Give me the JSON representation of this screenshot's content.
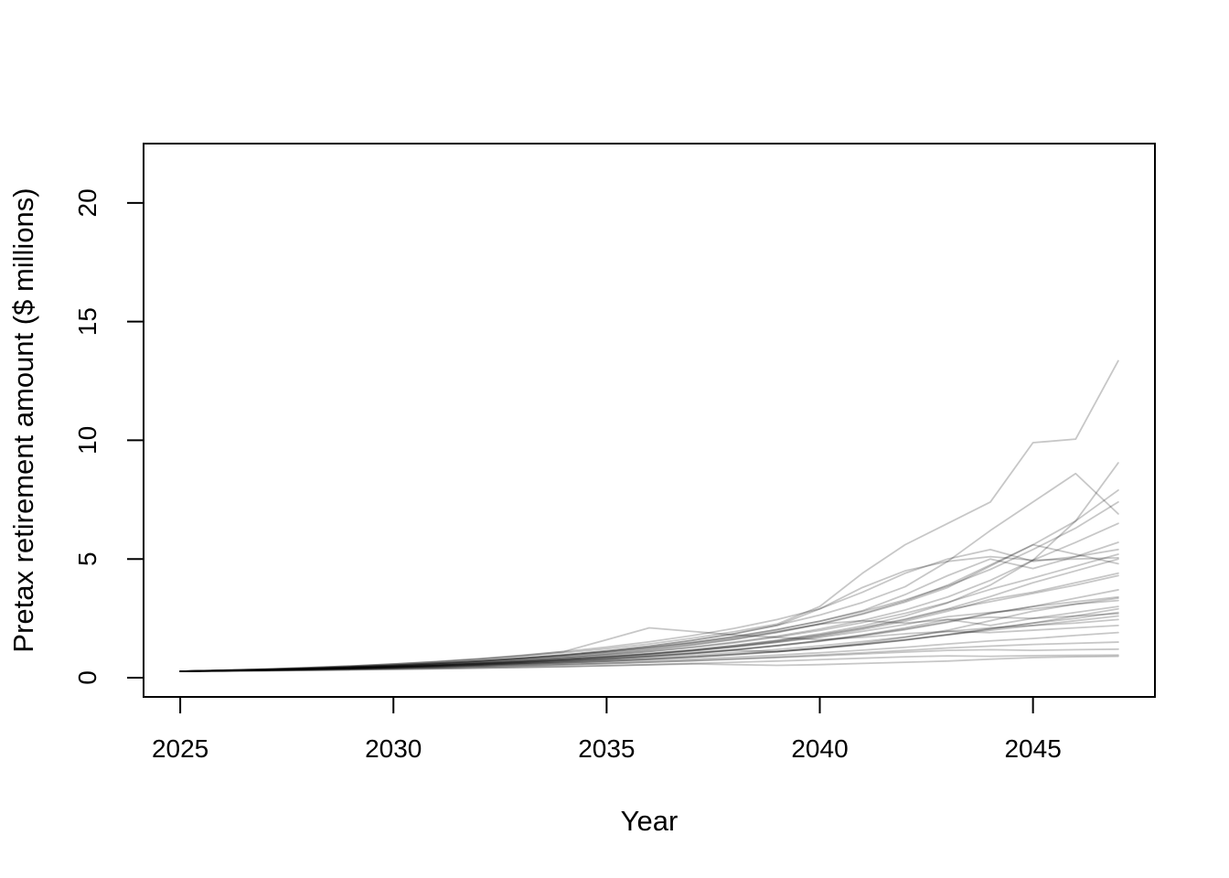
{
  "figure_title": "",
  "chart_data": {
    "type": "line",
    "title": "",
    "xlabel": "Year",
    "ylabel": "Pretax retirement amount ($ millions)",
    "x": [
      2025,
      2026,
      2027,
      2028,
      2029,
      2030,
      2031,
      2032,
      2033,
      2034,
      2035,
      2036,
      2037,
      2038,
      2039,
      2040,
      2041,
      2042,
      2043,
      2044,
      2045,
      2046,
      2047
    ],
    "x_ticks": [
      2025,
      2030,
      2035,
      2040,
      2045
    ],
    "y_ticks": [
      0,
      5,
      10,
      15,
      20
    ],
    "xlim": [
      2024.14,
      2047.86
    ],
    "ylim": [
      -0.81,
      22.5
    ],
    "grid": false,
    "legend": null,
    "line_color": "#000000",
    "line_opacity": 0.22,
    "axis_color": "#000000",
    "background_color": "#ffffff",
    "start_value": 0.27,
    "series": [
      [
        0.27,
        0.31,
        0.36,
        0.42,
        0.49,
        0.57,
        0.66,
        0.77,
        0.9,
        1.05,
        1.22,
        1.42,
        1.66,
        1.94,
        2.26,
        3.0,
        4.4,
        5.6,
        6.5,
        7.4,
        9.9,
        10.05,
        13.35
      ],
      [
        0.27,
        0.3,
        0.33,
        0.37,
        0.41,
        0.46,
        0.52,
        0.59,
        0.67,
        0.77,
        0.88,
        1.01,
        1.17,
        1.36,
        1.58,
        1.85,
        2.18,
        2.6,
        3.15,
        3.9,
        4.95,
        6.6,
        9.05
      ],
      [
        0.27,
        0.29,
        0.33,
        0.38,
        0.44,
        0.51,
        0.6,
        0.7,
        0.82,
        0.96,
        1.13,
        1.33,
        1.57,
        1.86,
        2.21,
        2.64,
        3.17,
        3.83,
        4.9,
        6.2,
        7.4,
        8.6,
        6.9
      ],
      [
        0.27,
        0.3,
        0.34,
        0.38,
        0.43,
        0.49,
        0.56,
        0.64,
        0.74,
        0.86,
        1.0,
        1.17,
        1.37,
        1.61,
        1.9,
        2.25,
        2.67,
        3.18,
        3.8,
        4.7,
        5.6,
        6.6,
        7.9
      ],
      [
        0.27,
        0.31,
        0.35,
        0.4,
        0.46,
        0.53,
        0.61,
        0.71,
        0.82,
        0.95,
        1.1,
        1.28,
        1.49,
        1.74,
        2.03,
        2.38,
        2.79,
        3.28,
        3.86,
        4.56,
        5.4,
        6.3,
        7.4
      ],
      [
        0.27,
        0.3,
        0.33,
        0.37,
        0.42,
        0.48,
        0.55,
        0.63,
        0.72,
        0.83,
        0.96,
        1.11,
        1.29,
        1.5,
        1.75,
        2.05,
        2.41,
        2.85,
        3.4,
        4.1,
        4.95,
        5.7,
        6.5
      ],
      [
        0.27,
        0.3,
        0.34,
        0.39,
        0.45,
        0.52,
        0.6,
        0.69,
        0.8,
        0.93,
        1.08,
        1.26,
        1.47,
        1.72,
        2.02,
        2.38,
        2.82,
        3.5,
        4.3,
        5.0,
        4.6,
        5.1,
        5.7
      ],
      [
        0.27,
        0.31,
        0.36,
        0.42,
        0.49,
        0.58,
        0.68,
        0.8,
        0.94,
        1.1,
        1.29,
        1.51,
        1.77,
        2.08,
        2.45,
        2.9,
        3.6,
        4.4,
        5.0,
        5.4,
        4.9,
        5.1,
        5.4
      ],
      [
        0.27,
        0.29,
        0.32,
        0.36,
        0.41,
        0.47,
        0.54,
        0.62,
        0.71,
        0.82,
        0.95,
        1.1,
        1.27,
        1.47,
        1.71,
        1.99,
        2.32,
        2.71,
        3.17,
        3.72,
        4.2,
        4.7,
        5.2
      ],
      [
        0.27,
        0.3,
        0.33,
        0.37,
        0.42,
        0.47,
        0.53,
        0.6,
        0.68,
        0.78,
        0.89,
        1.02,
        1.17,
        1.35,
        1.56,
        1.81,
        2.11,
        2.47,
        2.9,
        3.42,
        4.0,
        4.5,
        5.0
      ],
      [
        0.27,
        0.3,
        0.34,
        0.39,
        0.44,
        0.5,
        0.57,
        0.66,
        0.76,
        0.88,
        1.02,
        1.19,
        1.39,
        1.63,
        1.92,
        2.27,
        2.7,
        3.23,
        3.9,
        4.75,
        5.6,
        5.2,
        4.8
      ],
      [
        0.27,
        0.29,
        0.32,
        0.35,
        0.39,
        0.44,
        0.5,
        0.57,
        0.65,
        0.74,
        0.85,
        0.97,
        1.12,
        1.29,
        1.5,
        1.74,
        2.03,
        2.38,
        2.8,
        3.3,
        3.6,
        4.0,
        4.4
      ],
      [
        0.27,
        0.3,
        0.33,
        0.36,
        0.4,
        0.45,
        0.51,
        0.58,
        0.66,
        0.75,
        0.86,
        0.99,
        1.14,
        1.32,
        1.53,
        1.78,
        2.08,
        2.44,
        2.87,
        3.2,
        3.55,
        3.9,
        4.3
      ],
      [
        0.27,
        0.29,
        0.32,
        0.36,
        0.4,
        0.45,
        0.5,
        0.56,
        0.63,
        0.71,
        0.8,
        0.91,
        1.03,
        1.17,
        1.34,
        1.53,
        1.76,
        2.02,
        2.33,
        2.7,
        3.0,
        3.35,
        3.7
      ],
      [
        0.27,
        0.3,
        0.33,
        0.37,
        0.41,
        0.46,
        0.52,
        0.58,
        0.65,
        0.73,
        0.82,
        0.93,
        1.05,
        1.19,
        1.36,
        1.55,
        1.78,
        2.05,
        2.36,
        2.72,
        3.0,
        3.2,
        3.4
      ],
      [
        0.27,
        0.29,
        0.32,
        0.35,
        0.39,
        0.43,
        0.48,
        0.54,
        0.61,
        0.69,
        0.78,
        0.89,
        1.01,
        1.15,
        1.1,
        1.25,
        1.45,
        1.7,
        2.0,
        2.4,
        2.8,
        3.1,
        3.35
      ],
      [
        0.27,
        0.3,
        0.34,
        0.38,
        0.43,
        0.48,
        0.54,
        0.61,
        0.69,
        0.78,
        0.88,
        1.0,
        1.14,
        1.3,
        1.49,
        1.7,
        1.95,
        2.24,
        2.57,
        2.75,
        2.9,
        3.1,
        3.25
      ],
      [
        0.27,
        0.29,
        0.31,
        0.34,
        0.37,
        0.41,
        0.45,
        0.5,
        0.56,
        0.62,
        0.69,
        0.77,
        0.86,
        0.97,
        1.09,
        1.23,
        1.39,
        1.58,
        1.8,
        2.05,
        2.3,
        2.6,
        2.9
      ],
      [
        0.27,
        0.31,
        0.35,
        0.4,
        0.46,
        0.53,
        0.61,
        0.7,
        0.81,
        0.93,
        1.08,
        1.25,
        1.45,
        1.68,
        1.95,
        2.26,
        2.4,
        2.3,
        2.45,
        2.55,
        2.5,
        2.6,
        2.7
      ],
      [
        0.27,
        0.29,
        0.32,
        0.35,
        0.38,
        0.42,
        0.46,
        0.51,
        0.57,
        0.63,
        0.7,
        0.78,
        0.87,
        0.98,
        1.1,
        1.24,
        1.4,
        1.59,
        1.81,
        2.0,
        2.2,
        2.4,
        2.6
      ],
      [
        0.27,
        0.3,
        0.33,
        0.36,
        0.4,
        0.44,
        0.49,
        0.54,
        0.6,
        0.67,
        0.75,
        0.84,
        0.94,
        1.06,
        1.19,
        1.34,
        1.52,
        1.72,
        1.95,
        2.1,
        2.2,
        2.3,
        2.45
      ],
      [
        0.27,
        0.31,
        0.36,
        0.42,
        0.49,
        0.57,
        0.67,
        0.79,
        0.93,
        1.1,
        1.6,
        2.1,
        1.95,
        1.8,
        1.7,
        1.6,
        1.7,
        1.85,
        1.95,
        1.9,
        2.0,
        2.1,
        2.2
      ],
      [
        0.27,
        0.29,
        0.31,
        0.34,
        0.37,
        0.4,
        0.44,
        0.48,
        0.53,
        0.58,
        0.64,
        0.71,
        0.78,
        0.86,
        0.95,
        1.05,
        1.16,
        1.28,
        1.42,
        1.55,
        1.65,
        1.78,
        1.9
      ],
      [
        0.27,
        0.29,
        0.31,
        0.33,
        0.36,
        0.39,
        0.42,
        0.46,
        0.5,
        0.55,
        0.6,
        0.66,
        0.72,
        0.79,
        0.87,
        0.96,
        1.05,
        1.15,
        1.25,
        1.33,
        1.4,
        1.45,
        1.5
      ],
      [
        0.27,
        0.28,
        0.3,
        0.32,
        0.35,
        0.38,
        0.41,
        0.45,
        0.49,
        0.54,
        0.59,
        0.65,
        0.71,
        0.78,
        0.85,
        0.92,
        1.0,
        1.08,
        1.15,
        1.18,
        1.15,
        1.18,
        1.2
      ],
      [
        0.27,
        0.28,
        0.29,
        0.31,
        0.33,
        0.35,
        0.37,
        0.4,
        0.43,
        0.46,
        0.5,
        0.54,
        0.58,
        0.55,
        0.52,
        0.55,
        0.6,
        0.65,
        0.7,
        0.78,
        0.85,
        0.88,
        0.9
      ],
      [
        0.27,
        0.29,
        0.32,
        0.35,
        0.39,
        0.43,
        0.48,
        0.54,
        0.61,
        0.69,
        0.78,
        0.89,
        1.02,
        1.17,
        1.35,
        1.56,
        1.8,
        2.1,
        2.45,
        2.2,
        2.5,
        2.75,
        3.0
      ],
      [
        0.27,
        0.3,
        0.34,
        0.39,
        0.45,
        0.52,
        0.6,
        0.7,
        0.82,
        0.96,
        1.13,
        1.33,
        1.57,
        1.85,
        2.2,
        2.9,
        3.8,
        4.5,
        4.9,
        5.1,
        4.95,
        5.0,
        5.05
      ],
      [
        0.27,
        0.3,
        0.32,
        0.35,
        0.39,
        0.43,
        0.47,
        0.52,
        0.58,
        0.64,
        0.71,
        0.79,
        0.88,
        0.99,
        1.11,
        1.25,
        1.41,
        1.6,
        1.82,
        2.07,
        2.3,
        2.5,
        2.75
      ],
      [
        0.27,
        0.28,
        0.3,
        0.31,
        0.33,
        0.35,
        0.38,
        0.41,
        0.44,
        0.47,
        0.51,
        0.55,
        0.6,
        0.65,
        0.7,
        0.76,
        0.82,
        0.88,
        0.92,
        0.9,
        0.93,
        0.94,
        0.95
      ]
    ]
  }
}
